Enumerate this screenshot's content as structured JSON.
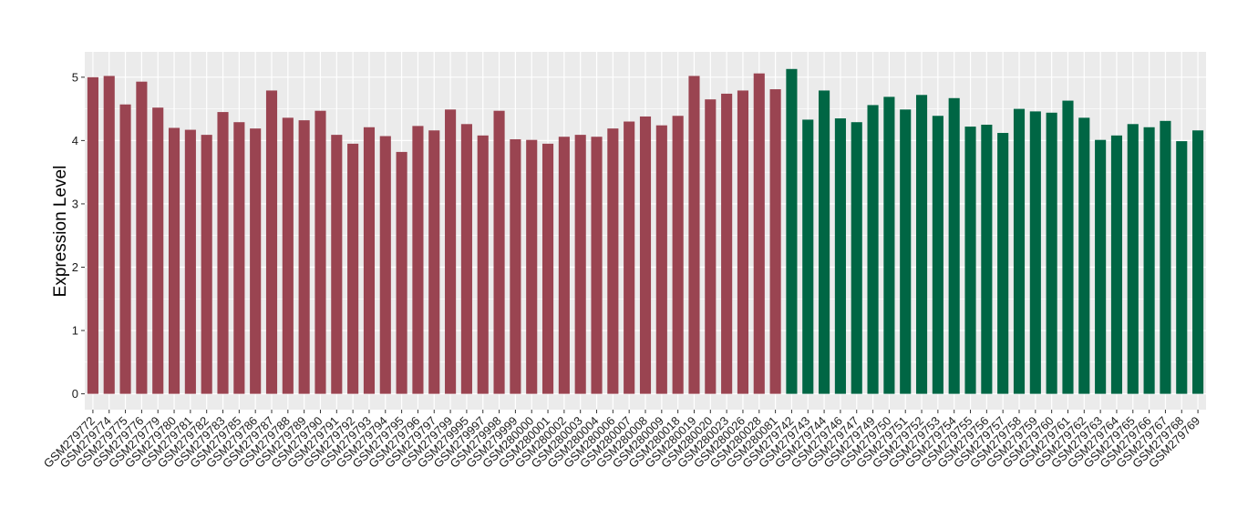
{
  "chart_data": {
    "type": "bar",
    "title": "",
    "xlabel": "",
    "ylabel": "Expression Level",
    "ylim": [
      -0.25,
      5.4
    ],
    "yticks": [
      0,
      1,
      2,
      3,
      4,
      5
    ],
    "grid": true,
    "background": "#ebebeb",
    "gridline_color": "#ffffff",
    "colors": {
      "group1": "#9a4451",
      "group2": "#006644"
    },
    "categories": [
      "GSM279772",
      "GSM279774",
      "GSM279775",
      "GSM279776",
      "GSM279779",
      "GSM279780",
      "GSM279781",
      "GSM279782",
      "GSM279783",
      "GSM279785",
      "GSM279786",
      "GSM279787",
      "GSM279788",
      "GSM279789",
      "GSM279790",
      "GSM279791",
      "GSM279792",
      "GSM279793",
      "GSM279794",
      "GSM279795",
      "GSM279796",
      "GSM279797",
      "GSM279799",
      "GSM279995",
      "GSM279997",
      "GSM279998",
      "GSM279999",
      "GSM280000",
      "GSM280001",
      "GSM280002",
      "GSM280003",
      "GSM280004",
      "GSM280006",
      "GSM280007",
      "GSM280008",
      "GSM280009",
      "GSM280018",
      "GSM280019",
      "GSM280020",
      "GSM280023",
      "GSM280026",
      "GSM280028",
      "GSM280081",
      "GSM279742",
      "GSM279743",
      "GSM279744",
      "GSM279746",
      "GSM279747",
      "GSM279749",
      "GSM279750",
      "GSM279751",
      "GSM279752",
      "GSM279753",
      "GSM279754",
      "GSM279755",
      "GSM279756",
      "GSM279757",
      "GSM279758",
      "GSM279759",
      "GSM279760",
      "GSM279761",
      "GSM279762",
      "GSM279763",
      "GSM279764",
      "GSM279765",
      "GSM279766",
      "GSM279767",
      "GSM279768",
      "GSM279769"
    ],
    "values": [
      5.0,
      5.02,
      4.57,
      4.93,
      4.52,
      4.2,
      4.17,
      4.09,
      4.45,
      4.29,
      4.19,
      4.79,
      4.36,
      4.32,
      4.47,
      4.09,
      3.95,
      4.21,
      4.07,
      3.82,
      4.23,
      4.16,
      4.49,
      4.26,
      4.08,
      4.47,
      4.02,
      4.01,
      3.95,
      4.06,
      4.09,
      4.06,
      4.19,
      4.3,
      4.38,
      4.24,
      4.39,
      5.02,
      4.65,
      4.74,
      4.79,
      5.06,
      4.81,
      5.13,
      4.33,
      4.79,
      4.35,
      4.29,
      4.56,
      4.69,
      4.49,
      4.72,
      4.39,
      4.67,
      4.22,
      4.25,
      4.12,
      4.5,
      4.46,
      4.44,
      4.63,
      4.36,
      4.01,
      4.08,
      4.26,
      4.21,
      4.31,
      3.99,
      4.16
    ],
    "groups": [
      1,
      1,
      1,
      1,
      1,
      1,
      1,
      1,
      1,
      1,
      1,
      1,
      1,
      1,
      1,
      1,
      1,
      1,
      1,
      1,
      1,
      1,
      1,
      1,
      1,
      1,
      1,
      1,
      1,
      1,
      1,
      1,
      1,
      1,
      1,
      1,
      1,
      1,
      1,
      1,
      1,
      1,
      1,
      2,
      2,
      2,
      2,
      2,
      2,
      2,
      2,
      2,
      2,
      2,
      2,
      2,
      2,
      2,
      2,
      2,
      2,
      2,
      2,
      2,
      2,
      2,
      2,
      2,
      2
    ]
  }
}
